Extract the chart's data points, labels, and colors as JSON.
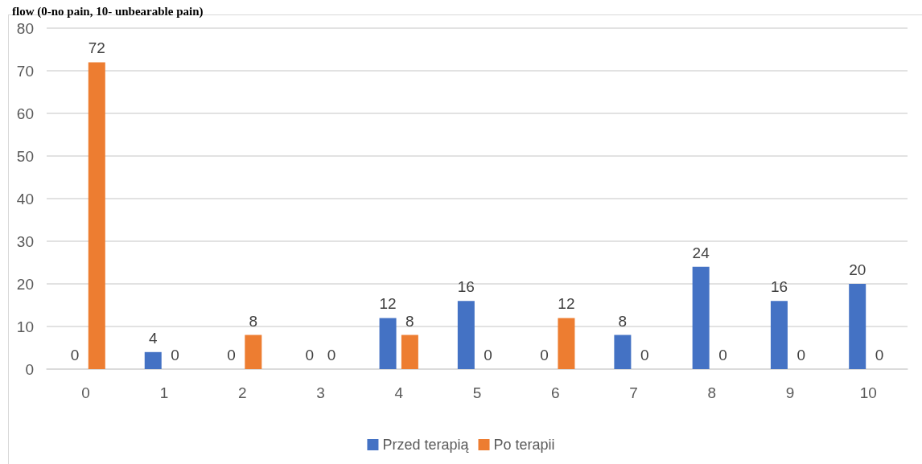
{
  "chart_data": {
    "type": "bar",
    "title": "flow (0-no pain, 10- unbearable pain)",
    "categories": [
      "0",
      "1",
      "2",
      "3",
      "4",
      "5",
      "6",
      "7",
      "8",
      "9",
      "10"
    ],
    "series": [
      {
        "name": "Przed terapią",
        "color": "#4472c4",
        "values": [
          0,
          4,
          0,
          0,
          12,
          16,
          0,
          8,
          24,
          16,
          20
        ]
      },
      {
        "name": "Po terapii",
        "color": "#ed7d31",
        "values": [
          72,
          0,
          8,
          0,
          8,
          0,
          12,
          0,
          0,
          0,
          0
        ]
      }
    ],
    "ylim": [
      0,
      80
    ],
    "yticks": [
      0,
      10,
      20,
      30,
      40,
      50,
      60,
      70,
      80
    ],
    "grid": "y",
    "legend": "bottom",
    "data_labels": true
  }
}
